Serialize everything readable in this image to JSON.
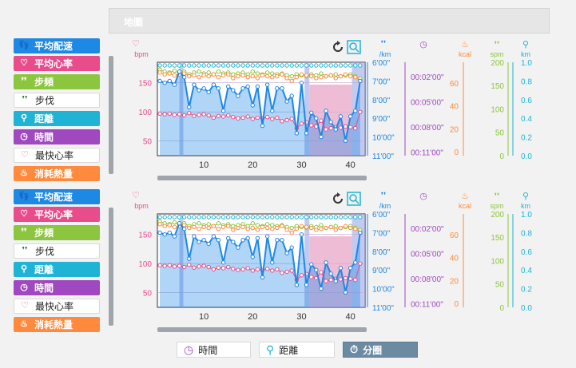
{
  "map": {
    "title": "地圖"
  },
  "colors": {
    "pace": "#1e88e5",
    "hr": "#e84c8b",
    "cadence": "#8cc63e",
    "stride": "#2e7d32",
    "distance": "#1fb3d6",
    "time": "#a048c0",
    "maxhr": "#e84c8b",
    "calories": "#ff8a3d"
  },
  "sidebar": {
    "items": [
      {
        "label": "平均配速",
        "icon": "footsteps-icon",
        "color": "#1e88e5",
        "active": true
      },
      {
        "label": "平均心率",
        "icon": "heart-icon",
        "color": "#e84c8b",
        "active": true
      },
      {
        "label": "步頻",
        "icon": "footsteps-icon",
        "color": "#8cc63e",
        "active": true
      },
      {
        "label": "步伐",
        "icon": "footsteps-icon",
        "color": "#2e7d32",
        "active": false
      },
      {
        "label": "距離",
        "icon": "distance-icon",
        "color": "#1fb3d6",
        "active": true
      },
      {
        "label": "時間",
        "icon": "clock-icon",
        "color": "#a048c0",
        "active": true
      },
      {
        "label": "最快心率",
        "icon": "heart-icon",
        "color": "#e84c8b",
        "active": false
      },
      {
        "label": "消耗熱量",
        "icon": "flame-icon",
        "color": "#ff8a3d",
        "active": true
      }
    ]
  },
  "axes": {
    "hr": {
      "unit": "bpm",
      "ticks": [
        "150",
        "100",
        "50"
      ]
    },
    "pace": {
      "unit": "/km",
      "ticks": [
        "6'00\"",
        "7'00\"",
        "8'00\"",
        "9'00\"",
        "10'00\"",
        "11'00\""
      ]
    },
    "time": {
      "ticks": [
        "00:02'00\"",
        "00:05'00\"",
        "00:08'00\"",
        "00:11'00\""
      ]
    },
    "kcal": {
      "unit": "kcal",
      "ticks": [
        "60",
        "40",
        "20",
        "0"
      ]
    },
    "spm": {
      "unit": "spm",
      "ticks": [
        "200",
        "150",
        "100",
        "50",
        "0"
      ]
    },
    "km": {
      "unit": "km",
      "ticks": [
        "1.0",
        "0.8",
        "0.6",
        "0.4",
        "0.2",
        "0.0"
      ]
    },
    "x": {
      "ticks": [
        "10",
        "20",
        "30",
        "40"
      ]
    }
  },
  "chart_data": [
    {
      "type": "line",
      "x": [
        1,
        2,
        3,
        4,
        5,
        6,
        7,
        8,
        9,
        10,
        11,
        12,
        13,
        14,
        15,
        16,
        17,
        18,
        19,
        20,
        21,
        22,
        23,
        24,
        25,
        26,
        27,
        28,
        29,
        30,
        31,
        32,
        33,
        34,
        35,
        36,
        37,
        38,
        39,
        40,
        41,
        42
      ],
      "series": [
        {
          "values": [
            7.0,
            7.1,
            7.0,
            7.2,
            6.5,
            6.8,
            8.4,
            7.2,
            7.5,
            7.4,
            7.6,
            7.2,
            7.4,
            8.6,
            7.3,
            7.5,
            7.8,
            7.4,
            7.3,
            8.3,
            7.3,
            9.4,
            7.2,
            8.6,
            7.4,
            7.4,
            8.1,
            7.8,
            9.8,
            7.1,
            9.8,
            8.7,
            9.0,
            10.0,
            8.6,
            9.2,
            9.6,
            8.9,
            10.2,
            8.9,
            8.6,
            7.0
          ]
        },
        {
          "values": [
            97,
            96,
            97,
            95,
            96,
            94,
            98,
            93,
            95,
            96,
            94,
            90,
            93,
            92,
            94,
            91,
            89,
            90,
            92,
            88,
            90,
            89,
            91,
            88,
            90,
            84,
            86,
            88,
            72,
            80,
            82,
            77,
            75,
            85,
            70,
            72,
            74,
            73,
            75,
            74,
            72,
            100
          ]
        },
        {
          "values": [
            178,
            174,
            176,
            172,
            174,
            176,
            170,
            172,
            168,
            172,
            170,
            174,
            168,
            172,
            174,
            166,
            170,
            172,
            168,
            170,
            166,
            172,
            170,
            168,
            170,
            174,
            166,
            160,
            168,
            174,
            172,
            170,
            166,
            168,
            170,
            172,
            166,
            170,
            174,
            170,
            168,
            160
          ]
        },
        {
          "values": [
            184,
            180,
            178,
            182,
            176,
            180,
            174,
            178,
            180,
            176,
            178,
            174,
            180,
            176,
            178,
            174,
            176,
            178,
            174,
            180,
            176,
            174,
            178,
            176,
            174,
            176,
            172,
            170,
            174,
            172,
            170,
            174,
            172,
            176,
            170,
            172,
            174,
            170,
            172,
            174,
            170,
            165
          ]
        }
      ]
    },
    {
      "type": "line",
      "x": [
        1,
        2,
        3,
        4,
        5,
        6,
        7,
        8,
        9,
        10,
        11,
        12,
        13,
        14,
        15,
        16,
        17,
        18,
        19,
        20,
        21,
        22,
        23,
        24,
        25,
        26,
        27,
        28,
        29,
        30,
        31,
        32,
        33,
        34,
        35,
        36,
        37,
        38,
        39,
        40,
        41,
        42
      ],
      "series": [
        {
          "values": [
            7.0,
            7.1,
            7.0,
            7.2,
            6.5,
            6.8,
            8.4,
            7.2,
            7.5,
            7.4,
            7.6,
            7.2,
            7.4,
            8.6,
            7.3,
            7.5,
            7.8,
            7.4,
            7.3,
            8.3,
            7.3,
            9.4,
            7.2,
            8.6,
            7.4,
            7.4,
            8.1,
            7.8,
            9.8,
            7.1,
            9.8,
            8.7,
            9.0,
            10.0,
            8.6,
            9.2,
            9.6,
            8.9,
            10.2,
            8.9,
            8.6,
            7.0
          ]
        },
        {
          "values": [
            97,
            96,
            97,
            95,
            96,
            94,
            98,
            93,
            95,
            96,
            94,
            90,
            93,
            92,
            94,
            91,
            89,
            90,
            92,
            88,
            90,
            89,
            91,
            88,
            90,
            84,
            86,
            88,
            72,
            80,
            82,
            77,
            75,
            85,
            70,
            72,
            74,
            73,
            75,
            74,
            72,
            100
          ]
        },
        {
          "values": [
            178,
            174,
            176,
            172,
            174,
            176,
            170,
            172,
            168,
            172,
            170,
            174,
            168,
            172,
            174,
            166,
            170,
            172,
            168,
            170,
            166,
            172,
            170,
            168,
            170,
            174,
            166,
            160,
            168,
            174,
            172,
            170,
            166,
            168,
            170,
            172,
            166,
            170,
            174,
            170,
            168,
            160
          ]
        },
        {
          "values": [
            184,
            180,
            178,
            182,
            176,
            180,
            174,
            178,
            180,
            176,
            178,
            174,
            180,
            176,
            178,
            174,
            176,
            178,
            174,
            180,
            176,
            174,
            178,
            176,
            174,
            176,
            172,
            170,
            174,
            172,
            170,
            174,
            172,
            176,
            170,
            172,
            174,
            170,
            172,
            174,
            170,
            165
          ]
        }
      ]
    }
  ],
  "bottom": {
    "buttons": [
      {
        "label": "時間",
        "icon": "clock-icon",
        "color": "#a048c0",
        "active": false
      },
      {
        "label": "距離",
        "icon": "distance-icon",
        "color": "#1fb3d6",
        "active": false
      },
      {
        "label": "分圈",
        "icon": "stopwatch-icon",
        "color": "#ffffff",
        "active": true
      }
    ]
  }
}
